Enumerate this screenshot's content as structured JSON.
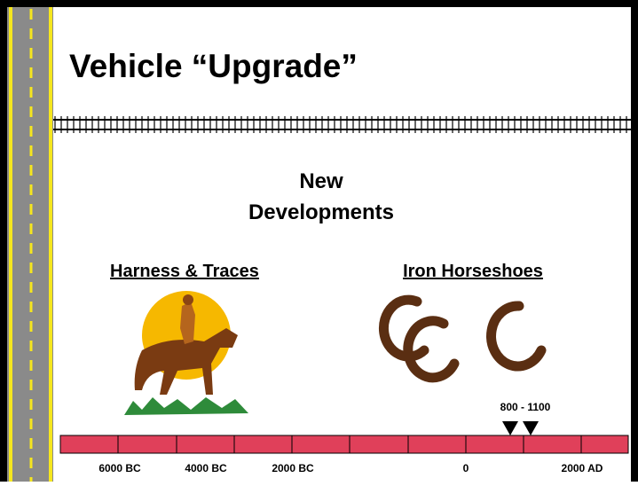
{
  "slide": {
    "title": "Vehicle “Upgrade”",
    "heading": [
      "New",
      "Developments"
    ],
    "sections": [
      {
        "caption": "Harness & Traces"
      },
      {
        "caption": "Iron Horseshoes"
      }
    ],
    "timeline": {
      "range_label": "800 - 1100",
      "labels": [
        "6000 BC",
        "4000 BC",
        "2000 BC",
        "0",
        "2000 AD"
      ]
    }
  }
}
